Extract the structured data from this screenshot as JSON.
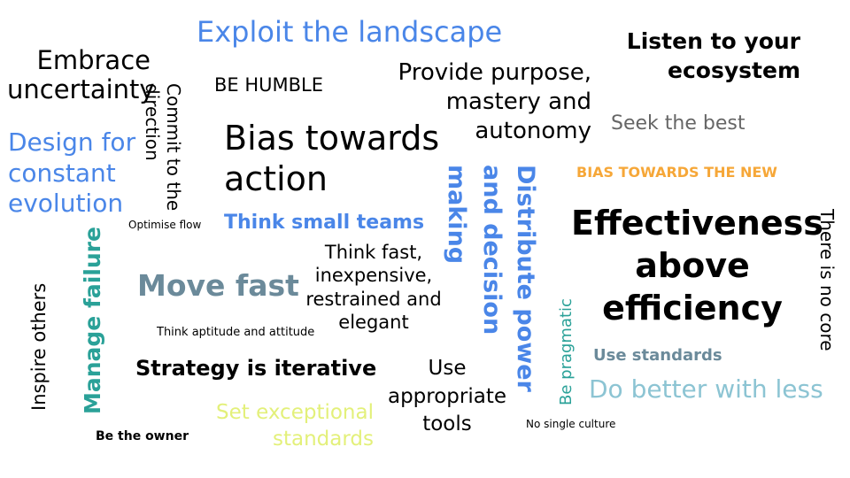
{
  "colors": {
    "blue": "#4a86e8",
    "slate": "#6b8a9a",
    "orange": "#f6a738",
    "teal": "#2aa198",
    "light_teal": "#8cc4d3",
    "yellow_green": "#e3f07a",
    "grey": "#666666",
    "black": "#000000"
  },
  "phrases": {
    "exploit_landscape": "Exploit the landscape",
    "embrace_uncertainty_1": "Embrace",
    "embrace_uncertainty_2": "uncertainty",
    "listen_ecosystem_1": "Listen to your",
    "listen_ecosystem_2": "ecosystem",
    "be_humble": "BE HUMBLE",
    "provide_purpose_1": "Provide purpose,",
    "provide_purpose_2": "mastery and",
    "provide_purpose_3": "autonomy",
    "commit_direction_1": "Commit to the",
    "commit_direction_2": "direction",
    "design_evolution_1": "Design for",
    "design_evolution_2": "constant",
    "design_evolution_3": "evolution",
    "bias_action_1": "Bias towards",
    "bias_action_2": "action",
    "seek_best": "Seek the best",
    "bias_new": "BIAS TOWARDS THE NEW",
    "making": "making",
    "and_decision": "and decision",
    "distribute_power": "Distribute power",
    "think_small_teams": "Think small teams",
    "optimise_flow": "Optimise flow",
    "effectiveness_1": "Effectiveness",
    "effectiveness_2": "above",
    "effectiveness_3": "efficiency",
    "no_core": "There is no core",
    "manage_failure": "Manage failure",
    "think_fast_1": "Think fast,",
    "think_fast_2": "inexpensive,",
    "think_fast_3": "restrained and",
    "think_fast_4": "elegant",
    "move_fast": "Move fast",
    "inspire_others": "Inspire others",
    "be_pragmatic": "Be pragmatic",
    "think_aptitude": "Think aptitude and attitude",
    "use_standards": "Use standards",
    "strategy_iterative": "Strategy is iterative",
    "use_tools_1": "Use",
    "use_tools_2": "appropriate",
    "use_tools_3": "tools",
    "do_better": "Do better with less",
    "set_standards_1": "Set exceptional",
    "set_standards_2": "standards",
    "no_single_culture": "No single culture",
    "be_owner": "Be the owner"
  }
}
